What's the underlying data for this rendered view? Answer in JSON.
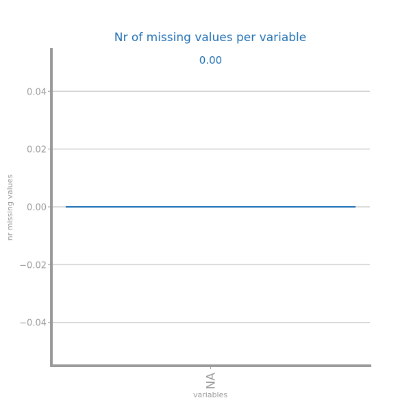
{
  "chart_data": {
    "type": "bar",
    "title": "Nr of missing values per variable",
    "xlabel": "variables",
    "ylabel": "nr missing values",
    "categories": [
      "NA"
    ],
    "values": [
      0.0
    ],
    "data_labels": [
      "0.00"
    ],
    "ylim": [
      -0.055,
      0.055
    ],
    "yticks": [
      -0.04,
      -0.02,
      0.0,
      0.02,
      0.04
    ],
    "ytick_labels": [
      "−0.04",
      "−0.02",
      "0.00",
      "0.02",
      "0.04"
    ],
    "grid": "horizontal",
    "legend": "none",
    "colors": {
      "accent": "#1f6fb4",
      "axis": "#999999",
      "grid": "#d0d0d0"
    }
  }
}
